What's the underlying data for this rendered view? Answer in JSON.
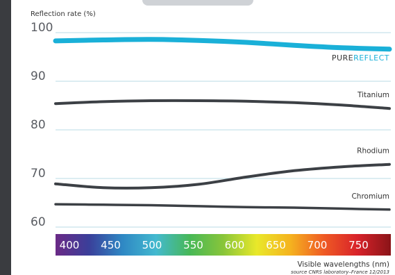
{
  "chart_data": {
    "type": "line",
    "ylabel": "Reflection rate (%)",
    "xlabel": "Visible wavelengths (nm)",
    "source": "source CNRS laboratory–France 12/2013",
    "ylim": [
      60,
      100
    ],
    "y_ticks": [
      "100",
      "90",
      "80",
      "70",
      "60"
    ],
    "x_ticks": [
      "400",
      "450",
      "500",
      "550",
      "600",
      "650",
      "700",
      "750"
    ],
    "x": [
      400,
      450,
      500,
      550,
      600,
      650,
      700,
      750
    ],
    "grid": true,
    "series": [
      {
        "name": "PUREREFLECT",
        "name_parts": [
          "PURE",
          "REFLECT"
        ],
        "color": "#1ab0d8",
        "name_colors": [
          "#333333",
          "#1ab0d8"
        ],
        "values": [
          98.3,
          98.5,
          98.6,
          98.4,
          98.0,
          97.4,
          96.9,
          96.6
        ]
      },
      {
        "name": "Titanium",
        "color": "#3c4045",
        "values": [
          85.4,
          85.8,
          86.0,
          86.0,
          85.9,
          85.6,
          85.1,
          84.4
        ]
      },
      {
        "name": "Rhodium",
        "color": "#3c4045",
        "values": [
          68.9,
          68.1,
          68.1,
          68.8,
          70.3,
          71.6,
          72.4,
          72.9
        ]
      },
      {
        "name": "Chromium",
        "color": "#3c4045",
        "values": [
          64.7,
          64.6,
          64.5,
          64.3,
          64.1,
          64.0,
          63.8,
          63.6
        ]
      }
    ],
    "spectrum_colors": [
      "#6a2a86",
      "#3a3f9a",
      "#2f88c4",
      "#43b9cf",
      "#47b857",
      "#88c53a",
      "#e9e82a",
      "#f5b31f",
      "#ef5a24",
      "#d8232a",
      "#8a1418"
    ]
  }
}
